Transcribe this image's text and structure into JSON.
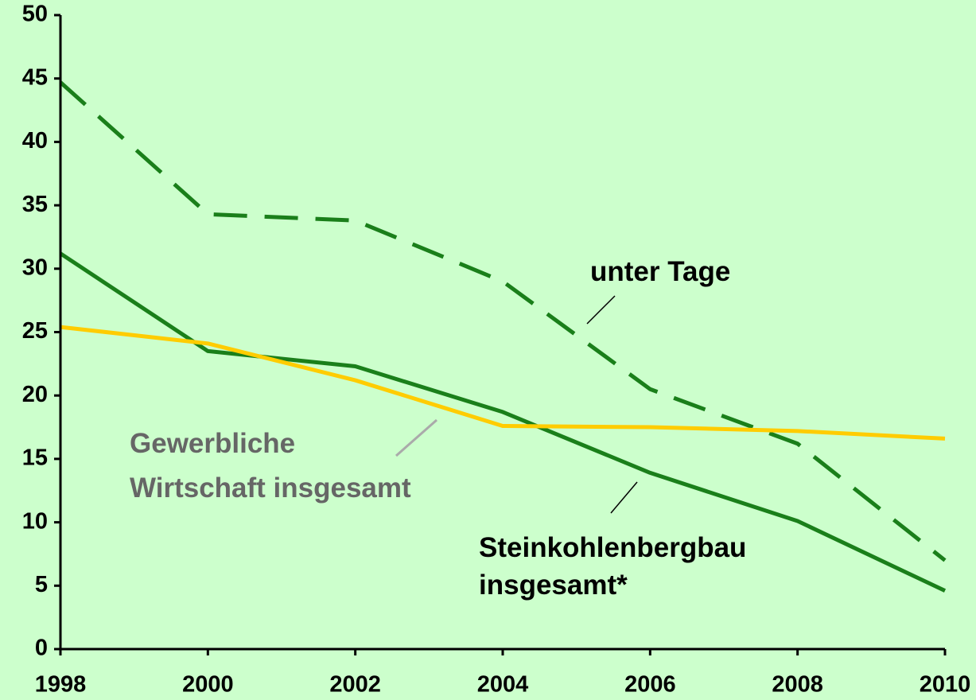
{
  "chart_data": {
    "type": "line",
    "x": [
      1998,
      2000,
      2002,
      2004,
      2006,
      2008,
      2010
    ],
    "series": [
      {
        "name": "unter Tage",
        "color": "#1a7f1a",
        "dashed": true,
        "values": [
          44.7,
          34.3,
          33.8,
          29.0,
          20.5,
          16.2,
          7.0
        ]
      },
      {
        "name": "Steinkohlenbergbau insgesamt*",
        "color": "#1a7f1a",
        "dashed": false,
        "values": [
          31.2,
          23.5,
          22.3,
          18.7,
          13.9,
          10.1,
          4.6
        ]
      },
      {
        "name": "Gewerbliche Wirtschaft insgesamt",
        "color": "#ffcc00",
        "dashed": false,
        "values": [
          25.4,
          24.1,
          21.2,
          17.6,
          17.5,
          17.2,
          16.6
        ]
      }
    ],
    "xlim": [
      1998,
      2010
    ],
    "xticks": [
      1998,
      2000,
      2002,
      2004,
      2006,
      2008,
      2010
    ],
    "ylim": [
      0,
      50
    ],
    "yticks": [
      0,
      5,
      10,
      15,
      20,
      25,
      30,
      35,
      40,
      45,
      50
    ]
  }
}
